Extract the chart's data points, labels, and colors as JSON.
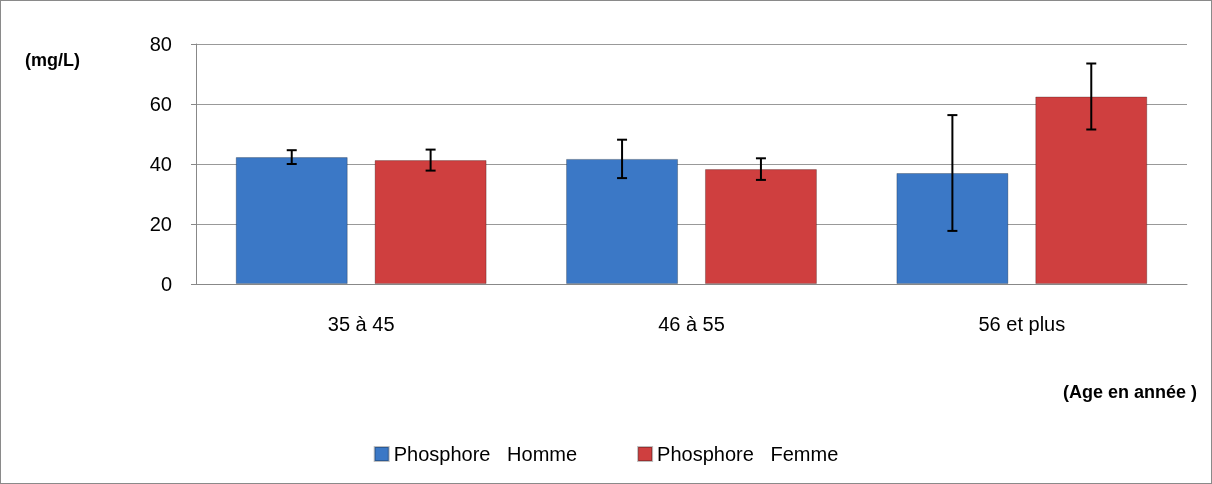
{
  "chart_data": {
    "type": "bar",
    "xlabel": "(Age en année )",
    "ylabel": "(mg/L)",
    "categories": [
      "35 à 45",
      "46 à 55",
      "56 et plus"
    ],
    "series": [
      {
        "name": "Phosphore   Homme",
        "color": "#3b78c6",
        "values": [
          42.3,
          41.7,
          37
        ],
        "errors": [
          2.3,
          6.4,
          19.3
        ]
      },
      {
        "name": "Phosphore   Femme",
        "color": "#cf3f3f",
        "values": [
          41.3,
          38.3,
          62.5
        ],
        "errors": [
          3.5,
          3.6,
          11
        ]
      }
    ],
    "ylim": [
      0,
      80
    ],
    "yticks": [
      0,
      20,
      40,
      60,
      80
    ],
    "grid": "y",
    "legend": "bottom"
  }
}
